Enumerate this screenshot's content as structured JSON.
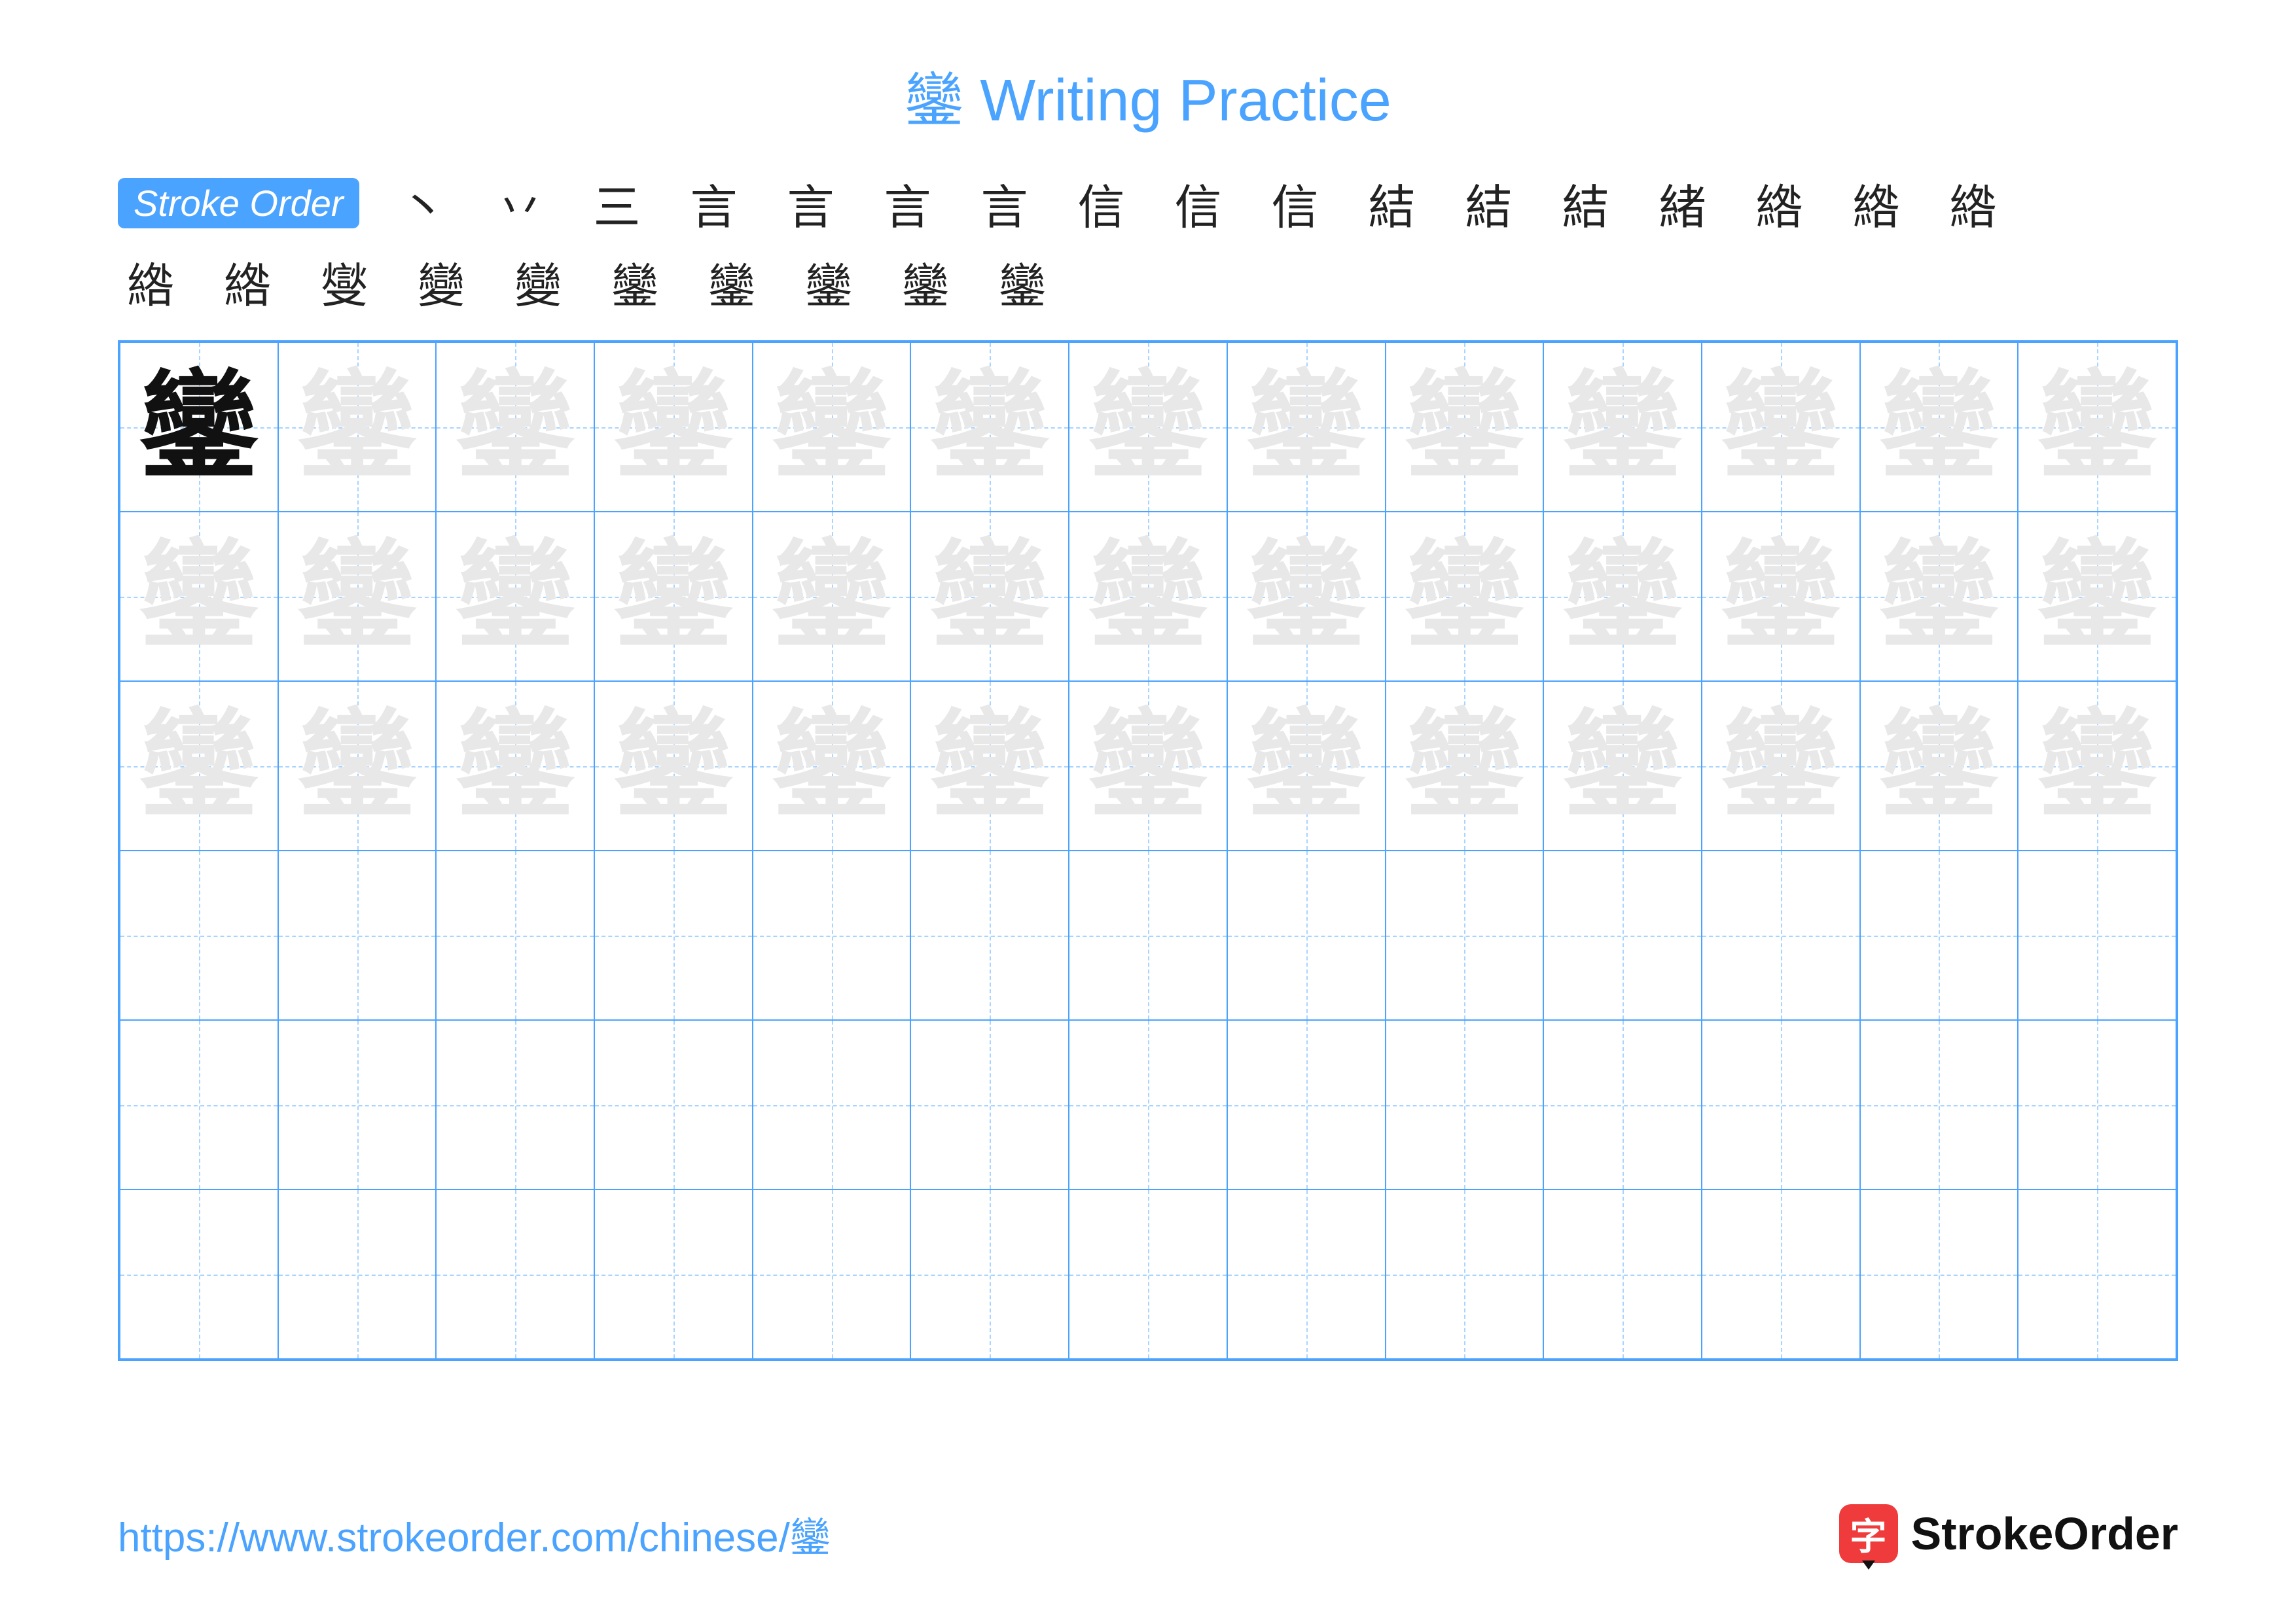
{
  "title_char": "鑾",
  "title_suffix": " Writing Practice",
  "title_color": "#4aa3ff",
  "badge": {
    "text": "Stroke Order",
    "bg": "#4aa3ff"
  },
  "stroke_steps_row1": [
    "丶",
    "丷",
    "三",
    "言",
    "言",
    "言",
    "言",
    "信",
    "信",
    "信",
    "結",
    "結",
    "結",
    "緒",
    "綹",
    "綹",
    "綹"
  ],
  "stroke_steps_row2": [
    "綹",
    "綹",
    "燮",
    "變",
    "變",
    "鑾",
    "鑾",
    "鑾",
    "鑾",
    "鑾"
  ],
  "character": "鑾",
  "grid": {
    "cols": 13,
    "rows": 6,
    "ghost_rows": 3,
    "border_color": "#4aa3ff",
    "guide_color": "#a8d4ff",
    "solid_char_color": "#111111",
    "ghost_char_color": "#e8e8e8"
  },
  "footer": {
    "url": "https://www.strokeorder.com/chinese/鑾",
    "url_color": "#4aa3ff",
    "brand_icon_char": "字",
    "brand_icon_bg": "#ef3b3b",
    "brand_name": "StrokeOrder"
  },
  "background_color": "#ffffff"
}
